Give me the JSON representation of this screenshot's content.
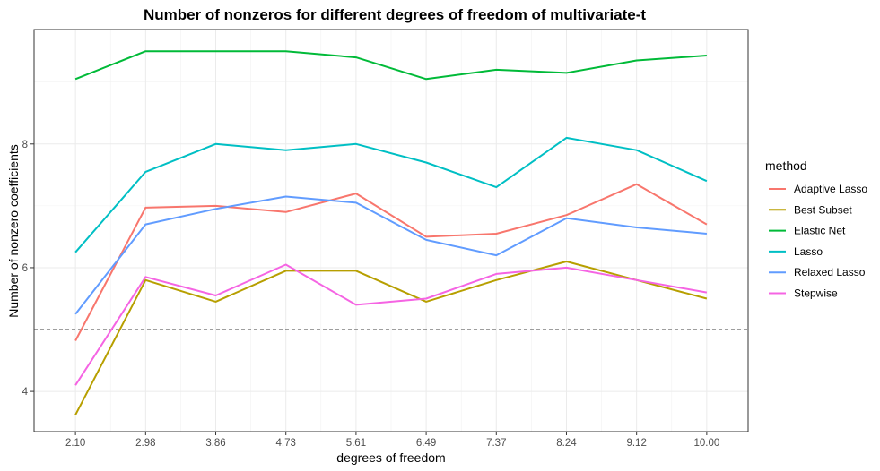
{
  "chart_data": {
    "type": "line",
    "title": "Number of nonzeros for different degrees of freedom of multivariate-t",
    "xlabel": "degrees of freedom",
    "ylabel": "Number of nonzero coefficients",
    "categories": [
      "2.10",
      "2.98",
      "3.86",
      "4.73",
      "5.61",
      "6.49",
      "7.37",
      "8.24",
      "9.12",
      "10.00"
    ],
    "ylim": [
      3.35,
      9.85
    ],
    "yticks": [
      4,
      6,
      8
    ],
    "reference_line": {
      "y": 5,
      "style": "dashed"
    },
    "grid": true,
    "legend": {
      "title": "method",
      "position": "right"
    },
    "series": [
      {
        "name": "Adaptive Lasso",
        "color": "#F8766D",
        "values": [
          4.82,
          6.97,
          7.0,
          6.9,
          7.2,
          6.5,
          6.55,
          6.85,
          7.35,
          6.7
        ]
      },
      {
        "name": "Best Subset",
        "color": "#B79F00",
        "values": [
          3.62,
          5.8,
          5.45,
          5.95,
          5.95,
          5.45,
          5.8,
          6.1,
          5.8,
          5.5
        ]
      },
      {
        "name": "Elastic Net",
        "color": "#00BA38",
        "values": [
          9.05,
          9.5,
          9.5,
          9.5,
          9.4,
          9.05,
          9.2,
          9.15,
          9.35,
          9.43
        ]
      },
      {
        "name": "Lasso",
        "color": "#00BFC4",
        "values": [
          6.25,
          7.55,
          8.0,
          7.9,
          8.0,
          7.7,
          7.3,
          8.1,
          7.9,
          7.4
        ]
      },
      {
        "name": "Relaxed Lasso",
        "color": "#619CFF",
        "values": [
          5.25,
          6.7,
          6.95,
          7.15,
          7.05,
          6.45,
          6.2,
          6.8,
          6.65,
          6.55
        ]
      },
      {
        "name": "Stepwise",
        "color": "#F564E3",
        "values": [
          4.1,
          5.85,
          5.55,
          6.05,
          5.4,
          5.5,
          5.9,
          6.0,
          5.8,
          5.6
        ]
      }
    ]
  }
}
